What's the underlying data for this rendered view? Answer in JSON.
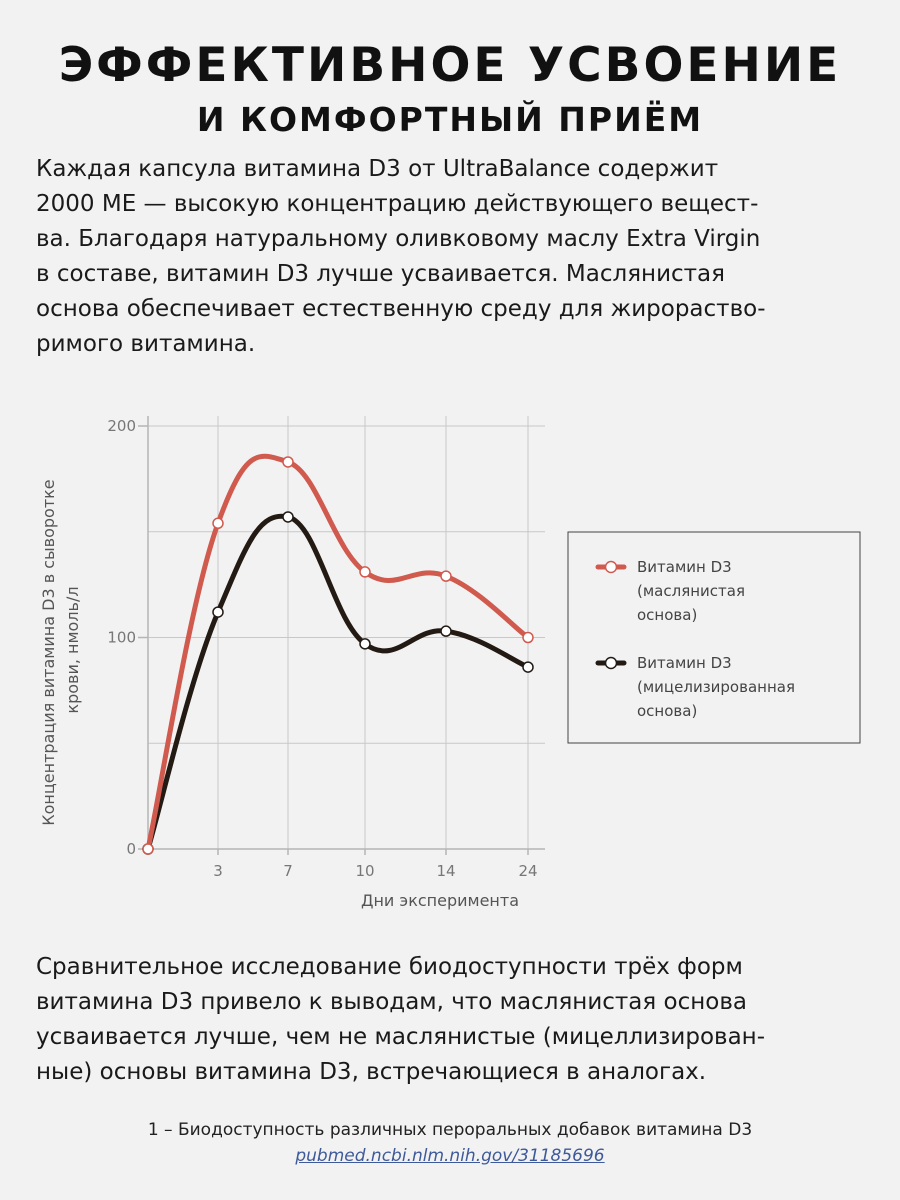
{
  "header": {
    "title_line1": "ЭФФЕКТИВНОЕ УСВОЕНИЕ",
    "title_line2": "И КОМФОРТНЫЙ ПРИЁМ"
  },
  "intro_lines": [
    "Каждая капсула витамина D3 от UltraBalance содержит",
    "2000 МЕ — высокую концентрацию действующего вещест-",
    "ва. Благодаря натуральному оливковому маслу Extra Virgin",
    "в составе, витамин D3 лучше усваивается. Маслянистая",
    "основа обеспечивает естественную среду для жирораство-",
    "римого витамина."
  ],
  "chart_data": {
    "type": "line",
    "x": [
      "",
      "3",
      "7",
      "10",
      "14",
      "24"
    ],
    "ylabel_lines": [
      "Концентрация витамина D3 в сыворотке",
      "крови, нмоль/л"
    ],
    "xlabel": "Дни эксперимента",
    "ylim": [
      0,
      200
    ],
    "yticks": [
      0,
      100,
      200
    ],
    "grid": true,
    "legend_position": "right",
    "series": [
      {
        "name_lines": [
          "Витамин D3",
          "(маслянистая",
          "основа)"
        ],
        "color": "#d05a4e",
        "values": [
          0,
          154,
          183,
          131,
          129,
          100
        ]
      },
      {
        "name_lines": [
          "Витамин D3",
          "(мицелизированная",
          "основа)"
        ],
        "color": "#231a14",
        "values": [
          0,
          112,
          157,
          97,
          103,
          86
        ]
      }
    ]
  },
  "conclusion_lines": [
    "Сравнительное исследование биодоступности трёх форм",
    "витамина D3 привело к выводам, что маслянистая основа",
    "усваивается лучше, чем не маслянистые (мицеллизирован-",
    "ные) основы витамина D3, встречающиеся в аналогах."
  ],
  "footnote": {
    "text": "1 – Биодоступность различных пероральных добавок витамина D3",
    "link": "pubmed.ncbi.nlm.nih.gov/31185696"
  }
}
